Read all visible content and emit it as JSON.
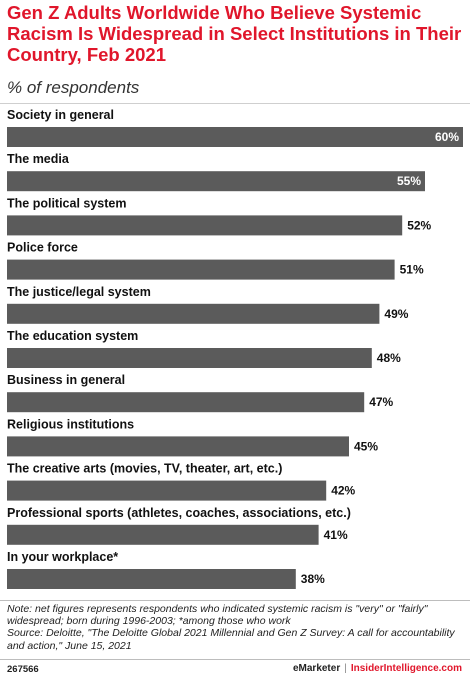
{
  "header": {
    "title": "Gen Z Adults Worldwide Who Believe Systemic Racism Is Widespread in Select Institutions in Their Country, Feb 2021",
    "subtitle": "% of respondents"
  },
  "chart_data": {
    "type": "bar",
    "orientation": "horizontal",
    "categories": [
      "Society in general",
      "The media",
      "The political system",
      "Police force",
      "The justice/legal system",
      "The education system",
      "Business in general",
      "Religious institutions",
      "The creative arts (movies, TV, theater, art, etc.)",
      "Professional sports (athletes, coaches, associations, etc.)",
      "In your workplace*"
    ],
    "values": [
      60,
      55,
      52,
      51,
      49,
      48,
      47,
      45,
      42,
      41,
      38
    ],
    "value_labels": [
      "60%",
      "55%",
      "52%",
      "51%",
      "49%",
      "48%",
      "47%",
      "45%",
      "42%",
      "41%",
      "38%"
    ],
    "xlim": [
      0,
      60
    ],
    "grid": false,
    "legend": "none",
    "bar_color": "#5b5b5b"
  },
  "footer": {
    "note": "Note: net figures represents respondents who indicated systemic racism is \"very\" or \"fairly\" widespread; born during 1996-2003; *among those who work",
    "source": "Source: Deloitte, \"The Deloitte Global 2021 Millennial and Gen Z Survey: A call for accountability and action,\" June 15, 2021",
    "chart_id": "267566",
    "brand_emarketer": "eMarketer",
    "brand_separator": "|",
    "brand_insider": "InsiderIntelligence.com"
  }
}
